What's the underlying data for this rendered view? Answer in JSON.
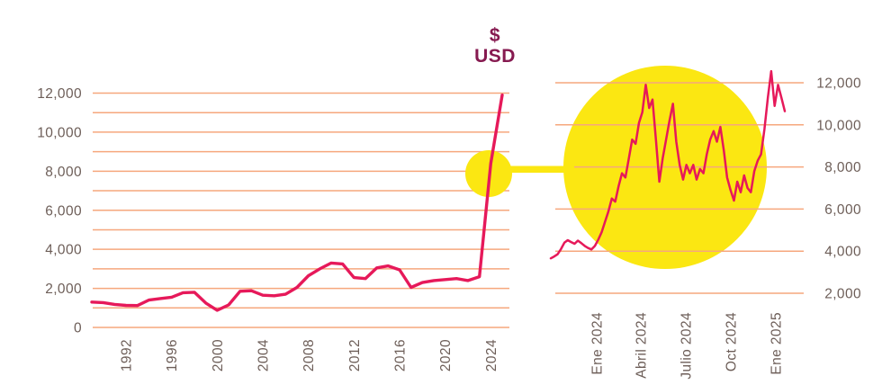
{
  "title": {
    "line1": "$",
    "line2": "USD"
  },
  "colors": {
    "line": "#E6195A",
    "grid": "#F6A77D",
    "axis_label": "#6D5E58",
    "title": "#861A50",
    "highlight": "#FBE712",
    "background": "#FFFFFF"
  },
  "chart_data": [
    {
      "name": "historical-price",
      "type": "line",
      "title": "",
      "xlabel": "",
      "ylabel": "",
      "grid": true,
      "legend": "none",
      "xlim": [
        1989,
        2025
      ],
      "ylim": [
        0,
        12000
      ],
      "grid_step": 1000,
      "y_axis_side": "left",
      "x": [
        1989,
        1990,
        1991,
        1992,
        1993,
        1994,
        1995,
        1996,
        1997,
        1998,
        1999,
        2000,
        2001,
        2002,
        2003,
        2004,
        2005,
        2006,
        2007,
        2008,
        2009,
        2010,
        2011,
        2012,
        2013,
        2014,
        2015,
        2016,
        2017,
        2018,
        2019,
        2020,
        2021,
        2022,
        2023,
        2024,
        2025
      ],
      "values": [
        1300,
        1270,
        1180,
        1130,
        1120,
        1400,
        1480,
        1550,
        1780,
        1800,
        1250,
        880,
        1150,
        1850,
        1880,
        1650,
        1620,
        1700,
        2050,
        2650,
        3000,
        3300,
        3250,
        2550,
        2500,
        3050,
        3150,
        2950,
        2050,
        2300,
        2400,
        2450,
        2500,
        2400,
        2600,
        8400,
        11900
      ],
      "x_tick_values": [
        1992,
        1996,
        2000,
        2004,
        2008,
        2012,
        2016,
        2020,
        2024
      ],
      "x_tick_labels": [
        "1992",
        "1996",
        "2000",
        "2004",
        "2008",
        "2012",
        "2016",
        "2020",
        "2024"
      ],
      "y_tick_values": [
        0,
        2000,
        4000,
        6000,
        8000,
        10000,
        12000
      ],
      "y_tick_labels": [
        "0",
        "2,000",
        "4,000",
        "6,000",
        "8,000",
        "10,000",
        "12,000"
      ]
    },
    {
      "name": "zoom-2024-2025",
      "type": "line",
      "title": "",
      "xlabel": "",
      "ylabel": "",
      "grid": true,
      "legend": "none",
      "ylim": [
        2000,
        12000
      ],
      "grid_step": 2000,
      "y_axis_side": "right",
      "values": [
        3660,
        3750,
        3850,
        4100,
        4400,
        4520,
        4430,
        4350,
        4500,
        4380,
        4250,
        4150,
        4080,
        4250,
        4550,
        4900,
        5400,
        5900,
        6500,
        6350,
        7100,
        7700,
        7500,
        8400,
        9300,
        9100,
        10100,
        10600,
        11900,
        10800,
        11200,
        9300,
        7300,
        8400,
        9300,
        10200,
        11000,
        9200,
        8100,
        7400,
        8100,
        7700,
        8100,
        7400,
        7900,
        7700,
        8600,
        9300,
        9700,
        9200,
        9900,
        8800,
        7500,
        6900,
        6400,
        7300,
        6800,
        7600,
        7000,
        6800,
        7800,
        8300,
        8600,
        9800,
        11300,
        12550,
        10900,
        11900,
        11300,
        10650
      ],
      "x_tick_positions": [
        0.196,
        0.385,
        0.577,
        0.769,
        0.962
      ],
      "x_tick_labels": [
        "Ene 2024",
        "Abril 2024",
        "Julio 2024",
        "Oct 2024",
        "Ene 2025"
      ],
      "y_tick_values": [
        2000,
        4000,
        6000,
        8000,
        10000,
        12000
      ],
      "y_tick_labels": [
        "2,000",
        "4,000",
        "6,000",
        "8,000",
        "10,000",
        "12,000"
      ]
    }
  ]
}
